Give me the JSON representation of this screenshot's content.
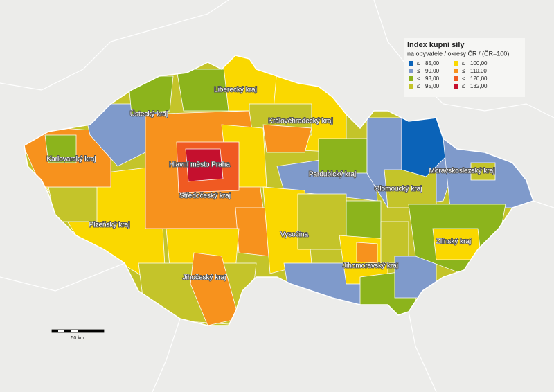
{
  "legend": {
    "title": "Index kupní síly",
    "subtitle": "na obyvatele / okresy ČR / (ČR=100)",
    "items": [
      {
        "symbol": "≤",
        "label": "85,00",
        "color": "#0b63b8"
      },
      {
        "symbol": "≤",
        "label": "90,00",
        "color": "#7f9acb"
      },
      {
        "symbol": "≤",
        "label": "93,00",
        "color": "#8cb41c"
      },
      {
        "symbol": "≤",
        "label": "95,00",
        "color": "#c4c42a"
      },
      {
        "symbol": "≤",
        "label": "100,00",
        "color": "#fad800"
      },
      {
        "symbol": "≤",
        "label": "110,00",
        "color": "#f7921d"
      },
      {
        "symbol": "≤",
        "label": "120,00",
        "color": "#f05a22"
      },
      {
        "symbol": "≤",
        "label": "132,00",
        "color": "#c5102e"
      }
    ]
  },
  "regions": [
    "Liberecký kraj",
    "Ústecký kraj",
    "Karlovarský kraj",
    "Hlavní město Praha",
    "Středočeský kraj",
    "Královéhradecký kraj",
    "Pardubický kraj",
    "Olomoucký kraj",
    "Moravskoslezský kraj",
    "Plzeňský kraj",
    "Vysočina",
    "Jihomoravský kraj",
    "Zlínský kraj",
    "Jihočeský kraj"
  ],
  "scale_bar": {
    "label": "50 km"
  }
}
